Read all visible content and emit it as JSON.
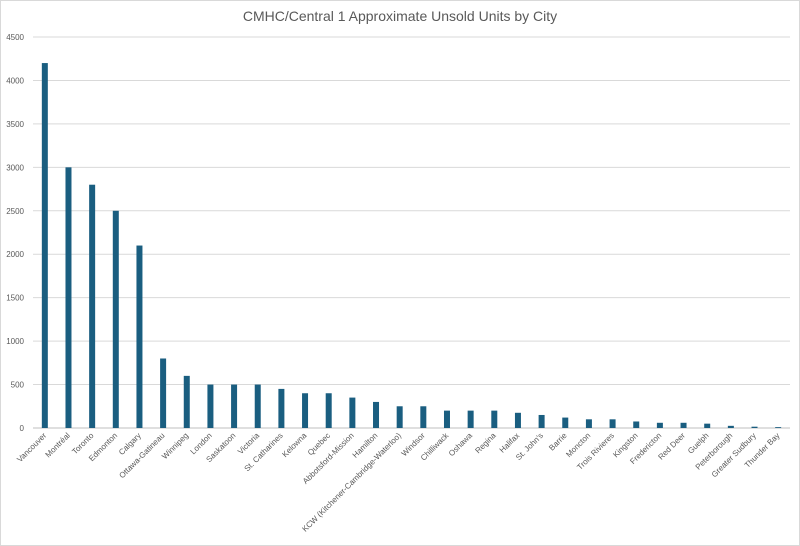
{
  "chart_data": {
    "type": "bar",
    "title": "CMHC/Central 1 Approximate Unsold Units by City",
    "xlabel": "",
    "ylabel": "",
    "ylim": [
      0,
      4500
    ],
    "yticks": [
      0,
      500,
      1000,
      1500,
      2000,
      2500,
      3000,
      3500,
      4000,
      4500
    ],
    "grid": true,
    "legend": "none",
    "bar_color": "#1a5e80",
    "categories": [
      "Vancouver",
      "Montréal",
      "Toronto",
      "Edmonton",
      "Calgary",
      "Ottawa-Gatineau",
      "Winnipeg",
      "London",
      "Saskatoon",
      "Victoria",
      "St. Catharines",
      "Kelowna",
      "Quebec",
      "Abbotsford-Mission",
      "Hamilton",
      "KCW (Kitchener-Cambridge-Waterloo)",
      "Windsor",
      "Chilliwack",
      "Oshawa",
      "Regina",
      "Halifax",
      "St. John's",
      "Barrie",
      "Moncton",
      "Trois Rivieres",
      "Kingston",
      "Fredericton",
      "Red Deer",
      "Guelph",
      "Peterborough",
      "Greater Sudbury",
      "Thunder Bay"
    ],
    "values": [
      4200,
      3000,
      2800,
      2500,
      2100,
      800,
      600,
      500,
      500,
      500,
      450,
      400,
      400,
      350,
      300,
      250,
      250,
      200,
      200,
      200,
      175,
      150,
      120,
      100,
      100,
      75,
      60,
      60,
      50,
      25,
      15,
      10
    ]
  }
}
